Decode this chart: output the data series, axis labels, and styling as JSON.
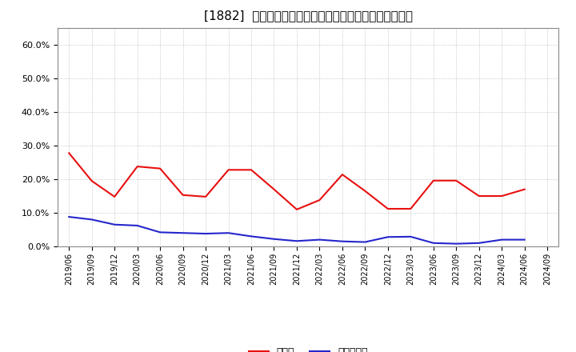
{
  "title": "[1882]  現預金、有利子負債の総資産に対する比率の推移",
  "x_labels": [
    "2019/06",
    "2019/09",
    "2019/12",
    "2020/03",
    "2020/06",
    "2020/09",
    "2020/12",
    "2021/03",
    "2021/06",
    "2021/09",
    "2021/12",
    "2022/03",
    "2022/06",
    "2022/09",
    "2022/12",
    "2023/03",
    "2023/06",
    "2023/09",
    "2023/12",
    "2024/03",
    "2024/06",
    "2024/09"
  ],
  "cash": [
    0.278,
    0.195,
    0.148,
    0.238,
    0.232,
    0.153,
    0.148,
    0.228,
    0.228,
    0.17,
    0.11,
    0.138,
    0.214,
    0.165,
    0.112,
    0.112,
    0.196,
    0.196,
    0.15,
    0.15,
    0.17,
    null
  ],
  "debt": [
    0.088,
    0.08,
    0.065,
    0.062,
    0.042,
    0.04,
    0.038,
    0.04,
    0.03,
    0.022,
    0.016,
    0.02,
    0.015,
    0.013,
    0.028,
    0.029,
    0.01,
    0.008,
    0.01,
    0.02,
    0.02,
    null
  ],
  "cash_color": "#e81010",
  "debt_color": "#2626cc",
  "background_color": "#ffffff",
  "plot_bg_color": "#ffffff",
  "grid_color": "#aaaaaa",
  "ylim": [
    0,
    0.65
  ],
  "yticks": [
    0.0,
    0.1,
    0.2,
    0.3,
    0.4,
    0.5,
    0.6
  ],
  "legend_cash": "現預金",
  "legend_debt": "有利子負債",
  "title_fontsize": 11
}
